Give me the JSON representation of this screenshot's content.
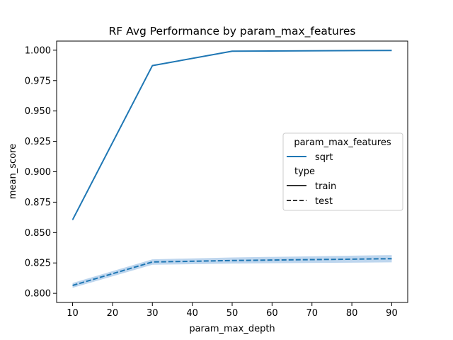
{
  "chart_data": {
    "type": "line",
    "title": "RF Avg Performance by param_max_features",
    "xlabel": "param_max_depth",
    "ylabel": "mean_score",
    "xlim": [
      6,
      94
    ],
    "ylim": [
      0.7925,
      1.0075
    ],
    "x_ticks": [
      10,
      20,
      30,
      40,
      50,
      60,
      70,
      80,
      90
    ],
    "y_ticks": [
      0.8,
      0.825,
      0.85,
      0.875,
      0.9,
      0.925,
      0.95,
      0.975,
      1.0
    ],
    "x_tick_labels": [
      "10",
      "20",
      "30",
      "40",
      "50",
      "60",
      "70",
      "80",
      "90"
    ],
    "y_tick_labels": [
      "0.800",
      "0.825",
      "0.850",
      "0.875",
      "0.900",
      "0.925",
      "0.950",
      "0.975",
      "1.000"
    ],
    "x": [
      10,
      30,
      50,
      90
    ],
    "series": [
      {
        "name": "train",
        "dash": "solid",
        "values": [
          0.8605,
          0.9873,
          0.9992,
          0.9998
        ],
        "ci_low": [
          0.8595,
          0.9868,
          0.9989,
          0.9996
        ],
        "ci_high": [
          0.8615,
          0.9878,
          0.9995,
          1.0
        ]
      },
      {
        "name": "test",
        "dash": "dashed",
        "values": [
          0.8065,
          0.8258,
          0.827,
          0.8285
        ],
        "ci_low": [
          0.8045,
          0.8235,
          0.8245,
          0.8255
        ],
        "ci_high": [
          0.8085,
          0.828,
          0.8295,
          0.8315
        ]
      }
    ],
    "color": "#1f77b4",
    "ci_color": "#a8c8e8",
    "legend": {
      "placement": "center-right",
      "hue_title": "param_max_features",
      "hue_entries": [
        "sqrt"
      ],
      "style_title": "type",
      "style_entries": [
        "train",
        "test"
      ]
    }
  }
}
